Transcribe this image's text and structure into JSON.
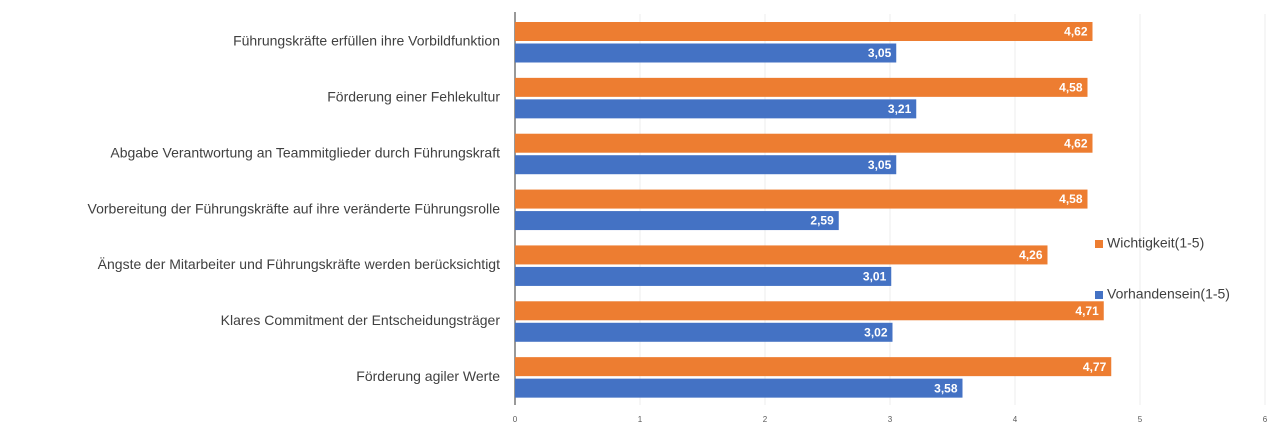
{
  "chart_data": {
    "type": "bar",
    "orientation": "horizontal",
    "categories": [
      "Führungskräfte erfüllen ihre Vorbildfunktion",
      "Förderung einer Fehlekultur",
      "Abgabe Verantwortung an Teammitglieder durch Führungskraft",
      "Vorbereitung der Führungskräfte auf ihre veränderte Führungsrolle",
      "Ängste der Mitarbeiter und Führungskräfte  werden berücksichtigt",
      "Klares Commitment der Entscheidungsträger",
      "Förderung agiler Werte"
    ],
    "series": [
      {
        "name": "Wichtigkeit(1-5)",
        "color": "#ed7d31",
        "values": [
          4.62,
          4.58,
          4.62,
          4.58,
          4.26,
          4.71,
          4.77
        ],
        "value_labels": [
          "4,62",
          "4,58",
          "4,62",
          "4,58",
          "4,26",
          "4,71",
          "4,77"
        ]
      },
      {
        "name": "Vorhandensein(1-5)",
        "color": "#4472c4",
        "values": [
          3.05,
          3.21,
          3.05,
          2.59,
          3.01,
          3.02,
          3.58
        ],
        "value_labels": [
          "3,05",
          "3,21",
          "3,05",
          "2,59",
          "3,01",
          "3,02",
          "3,58"
        ]
      }
    ],
    "xlim": [
      0,
      6
    ],
    "xticks": [
      0,
      1,
      2,
      3,
      4,
      5,
      6
    ],
    "grid": true,
    "legend": "right"
  }
}
